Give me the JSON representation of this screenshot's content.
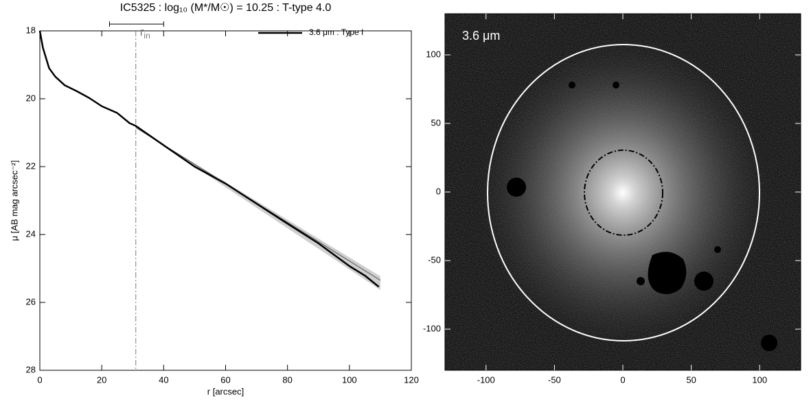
{
  "chart_data": [
    {
      "type": "line",
      "title": "IC5325 : log₁₀ (M*/M☉) = 10.25 : T-type 4.0",
      "x_label": "r [arcsec]",
      "y_label": "μ [AB mag arcsec⁻²]",
      "x": [
        0,
        1,
        2,
        3,
        5,
        8,
        12,
        16,
        20,
        25,
        29,
        31,
        40,
        50,
        60,
        70,
        80,
        90,
        100,
        105,
        109.5
      ],
      "series": [
        {
          "name": "3.6 μm : Type I",
          "color": "#000000",
          "values": [
            18.0,
            18.5,
            18.8,
            19.1,
            19.35,
            19.6,
            19.78,
            19.98,
            20.22,
            20.42,
            20.72,
            20.8,
            21.37,
            22.0,
            22.5,
            23.09,
            23.68,
            24.26,
            24.93,
            25.21,
            25.54
          ]
        }
      ],
      "fit": {
        "x": [
          31,
          110
        ],
        "values": [
          20.85,
          25.35
        ],
        "color": "#555555"
      },
      "r_in": {
        "value": 31,
        "label": "r",
        "subscript": "in",
        "range": [
          22.5,
          40
        ],
        "level": 17.8
      },
      "xlim": [
        0,
        120
      ],
      "xticks": [
        0,
        20,
        40,
        60,
        80,
        100,
        120
      ],
      "ylim": [
        28,
        18
      ],
      "yticks": [
        18,
        20,
        22,
        24,
        26,
        28
      ],
      "legend": "upper right"
    },
    {
      "type": "image",
      "label": "3.6 μm",
      "xlim": [
        -130,
        130
      ],
      "xticks": [
        -100,
        -50,
        0,
        50,
        100
      ],
      "ylim": [
        -130,
        130
      ],
      "yticks": [
        -100,
        -50,
        0,
        50,
        100
      ]
    }
  ]
}
